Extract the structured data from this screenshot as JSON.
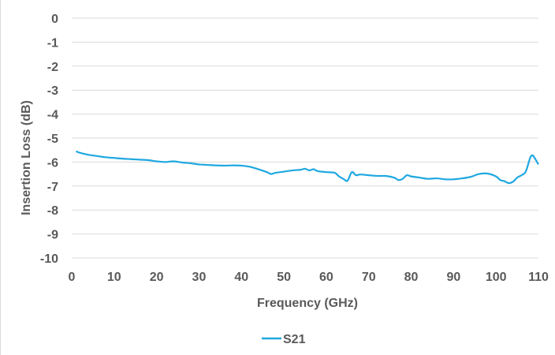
{
  "chart_data": {
    "type": "line",
    "title": "",
    "xlabel": "Frequency (GHz)",
    "ylabel": "Insertion Loss (dB)",
    "xlim": [
      0,
      110
    ],
    "ylim": [
      -10,
      0
    ],
    "x_ticks": [
      "0",
      "10",
      "20",
      "30",
      "40",
      "50",
      "60",
      "70",
      "80",
      "90",
      "100",
      "110"
    ],
    "y_ticks": [
      "0",
      "-1",
      "-2",
      "-3",
      "-4",
      "-5",
      "-6",
      "-7",
      "-8",
      "-9",
      "-10"
    ],
    "grid": "horizontal",
    "legend_position": "bottom",
    "series": [
      {
        "name": "S21",
        "color": "#1fa8e0",
        "x": [
          1,
          2,
          4,
          6,
          8,
          10,
          12,
          14,
          16,
          18,
          20,
          22,
          24,
          26,
          28,
          30,
          32,
          34,
          36,
          38,
          40,
          42,
          44,
          46,
          47,
          48,
          50,
          52,
          54,
          55,
          56,
          57,
          58,
          60,
          62,
          63,
          64,
          65,
          66,
          67,
          68,
          70,
          72,
          74,
          76,
          77,
          78,
          79,
          80,
          82,
          84,
          86,
          88,
          90,
          92,
          94,
          96,
          98,
          100,
          101,
          102,
          103,
          104,
          105,
          106,
          107,
          108,
          108.5,
          109,
          110
        ],
        "values": [
          -5.55,
          -5.62,
          -5.7,
          -5.75,
          -5.8,
          -5.83,
          -5.86,
          -5.88,
          -5.9,
          -5.92,
          -5.97,
          -6.0,
          -5.97,
          -6.02,
          -6.05,
          -6.1,
          -6.12,
          -6.14,
          -6.15,
          -6.14,
          -6.15,
          -6.2,
          -6.3,
          -6.42,
          -6.5,
          -6.45,
          -6.4,
          -6.35,
          -6.32,
          -6.28,
          -6.35,
          -6.3,
          -6.38,
          -6.42,
          -6.45,
          -6.6,
          -6.7,
          -6.78,
          -6.42,
          -6.55,
          -6.52,
          -6.55,
          -6.58,
          -6.58,
          -6.65,
          -6.75,
          -6.7,
          -6.55,
          -6.6,
          -6.65,
          -6.7,
          -6.68,
          -6.72,
          -6.72,
          -6.68,
          -6.62,
          -6.5,
          -6.48,
          -6.6,
          -6.75,
          -6.8,
          -6.88,
          -6.82,
          -6.65,
          -6.55,
          -6.4,
          -5.85,
          -5.72,
          -5.8,
          -6.1
        ]
      }
    ]
  }
}
